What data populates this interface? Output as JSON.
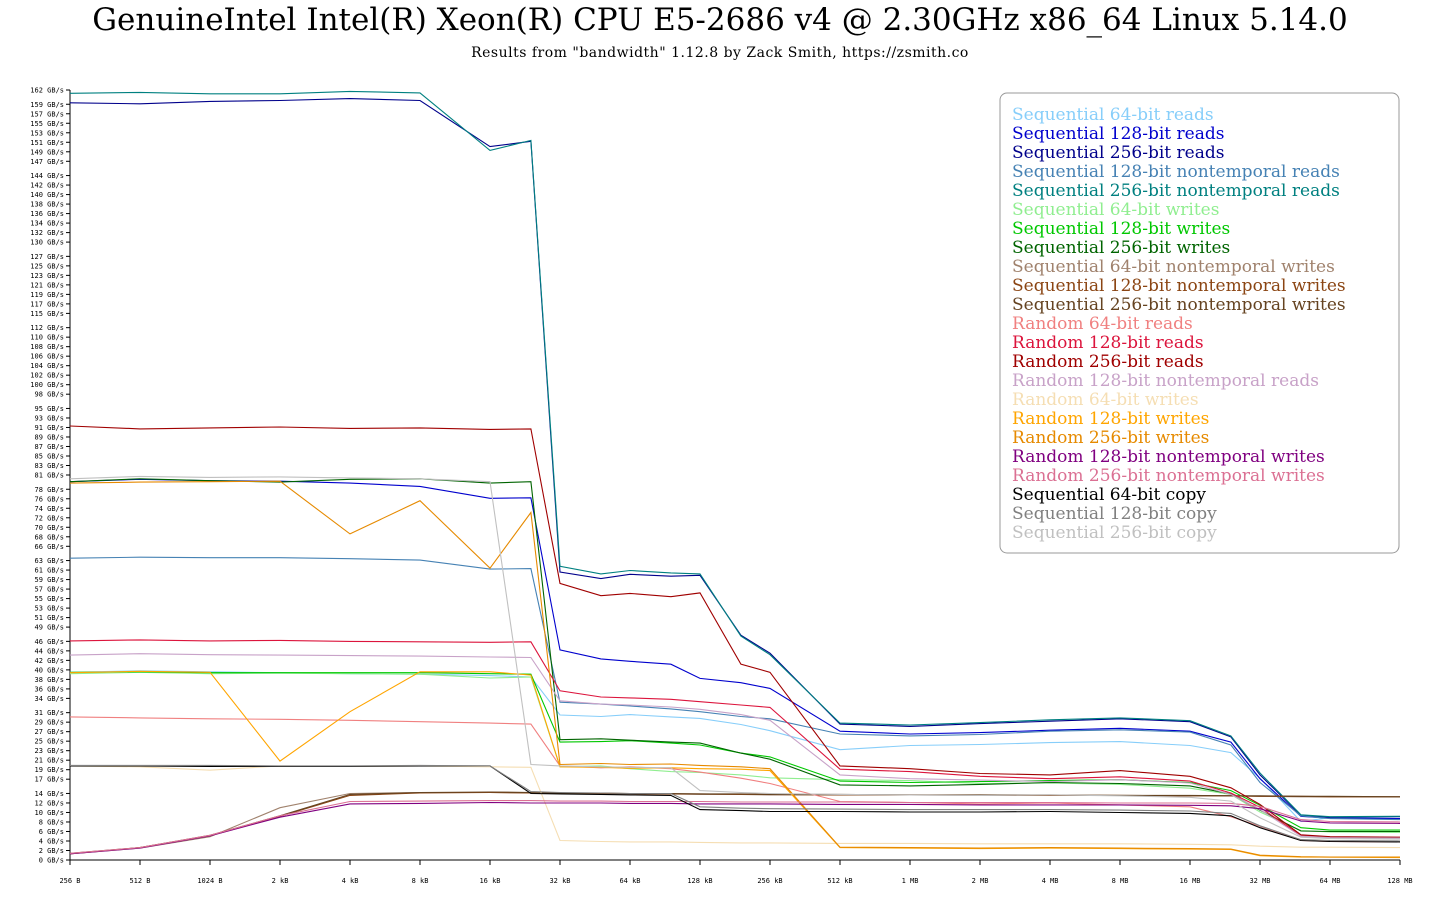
{
  "header": {
    "title": "GenuineIntel Intel(R) Xeon(R) CPU E5-2686 v4 @ 2.30GHz x86_64 Linux 5.14.0",
    "subtitle": "Results from \"bandwidth\" 1.12.8 by Zack Smith, https://zsmith.co"
  },
  "chart_data": {
    "type": "line",
    "title": "GenuineIntel Intel(R) Xeon(R) CPU E5-2686 v4 @ 2.30GHz x86_64 Linux 5.14.0",
    "subtitle": "Results from \"bandwidth\" 1.12.8 by Zack Smith, https://zsmith.co",
    "xlabel": "",
    "ylabel": "",
    "x_scale": "log2",
    "x_ticks": [
      "256 B",
      "512 B",
      "1024 B",
      "2 kB",
      "4 kB",
      "8 kB",
      "16 kB",
      "32 kB",
      "64 kB",
      "128 kB",
      "256 kB",
      "512 kB",
      "1 MB",
      "2 MB",
      "4 MB",
      "8 MB",
      "16 MB",
      "32 MB",
      "64 MB",
      "128 MB"
    ],
    "y_ticks": [
      "0 GB/s",
      "2 GB/s",
      "4 GB/s",
      "6 GB/s",
      "8 GB/s",
      "10 GB/s",
      "12 GB/s",
      "14 GB/s",
      "17 GB/s",
      "19 GB/s",
      "21 GB/s",
      "23 GB/s",
      "25 GB/s",
      "27 GB/s",
      "29 GB/s",
      "31 GB/s",
      "34 GB/s",
      "36 GB/s",
      "38 GB/s",
      "40 GB/s",
      "42 GB/s",
      "44 GB/s",
      "46 GB/s",
      "49 GB/s",
      "51 GB/s",
      "53 GB/s",
      "55 GB/s",
      "57 GB/s",
      "59 GB/s",
      "61 GB/s",
      "63 GB/s",
      "66 GB/s",
      "68 GB/s",
      "70 GB/s",
      "72 GB/s",
      "74 GB/s",
      "76 GB/s",
      "78 GB/s",
      "81 GB/s",
      "83 GB/s",
      "85 GB/s",
      "87 GB/s",
      "89 GB/s",
      "91 GB/s",
      "93 GB/s",
      "95 GB/s",
      "98 GB/s",
      "100 GB/s",
      "102 GB/s",
      "104 GB/s",
      "106 GB/s",
      "108 GB/s",
      "110 GB/s",
      "112 GB/s",
      "115 GB/s",
      "117 GB/s",
      "119 GB/s",
      "121 GB/s",
      "123 GB/s",
      "125 GB/s",
      "127 GB/s",
      "130 GB/s",
      "132 GB/s",
      "134 GB/s",
      "136 GB/s",
      "138 GB/s",
      "140 GB/s",
      "142 GB/s",
      "144 GB/s",
      "147 GB/s",
      "149 GB/s",
      "151 GB/s",
      "153 GB/s",
      "155 GB/s",
      "157 GB/s",
      "159 GB/s",
      "162 GB/s"
    ],
    "ylim": [
      0,
      162
    ],
    "grid": false,
    "legend_position": "top-right",
    "x_sizes": [
      "256 B",
      "512 B",
      "1024 B",
      "2 kB",
      "4 kB",
      "8 kB",
      "16 kB",
      "24 kB",
      "32 kB",
      "48 kB",
      "64 kB",
      "96 kB",
      "128 kB",
      "192 kB",
      "256 kB",
      "512 kB",
      "1 MB",
      "2 MB",
      "4 MB",
      "8 MB",
      "16 MB",
      "24 MB",
      "32 MB",
      "48 MB",
      "64 MB",
      "128 MB"
    ],
    "series": [
      {
        "name": "Sequential 64-bit reads",
        "color": "#87cefa",
        "values": [
          39.5,
          39.8,
          39.6,
          39.4,
          39.2,
          39.1,
          38.8,
          38.5,
          30.5,
          30.2,
          30.6,
          30.1,
          29.8,
          28.5,
          27.2,
          23.2,
          24.1,
          24.3,
          24.7,
          24.9,
          24.1,
          22.6,
          17.2,
          8.1,
          8.9,
          8.7
        ]
      },
      {
        "name": "Sequential 128-bit reads",
        "color": "#0000cd",
        "values": [
          79.6,
          80.1,
          79.8,
          79.7,
          79.3,
          78.6,
          76.1,
          76.2,
          44.2,
          42.3,
          41.8,
          41.2,
          38.2,
          37.3,
          36.1,
          27.1,
          26.5,
          26.8,
          27.3,
          27.7,
          27.1,
          24.8,
          17.1,
          9.2,
          8.8,
          8.7
        ]
      },
      {
        "name": "Sequential 256-bit reads",
        "color": "#00008b",
        "values": [
          159.3,
          159.1,
          159.6,
          159.8,
          160.2,
          159.8,
          150.1,
          151.2,
          60.6,
          59.2,
          60.1,
          59.7,
          59.9,
          47.3,
          43.5,
          28.6,
          28.1,
          28.7,
          29.2,
          29.7,
          29.1,
          25.9,
          17.9,
          9.4,
          9.0,
          9.1
        ]
      },
      {
        "name": "Sequential 128-bit nontemporal reads",
        "color": "#4682b4",
        "values": [
          63.5,
          63.7,
          63.6,
          63.6,
          63.4,
          63.1,
          61.2,
          61.3,
          33.2,
          32.8,
          32.4,
          31.8,
          31.2,
          30.2,
          29.7,
          26.5,
          26.1,
          26.4,
          27.1,
          27.4,
          26.9,
          24.2,
          16.3,
          9.3,
          8.7,
          8.5
        ]
      },
      {
        "name": "Sequential 256-bit nontemporal reads",
        "color": "#008080",
        "values": [
          161.3,
          161.5,
          161.2,
          161.2,
          161.7,
          161.4,
          149.3,
          151.4,
          61.8,
          60.2,
          60.9,
          60.4,
          60.2,
          47.1,
          43.2,
          28.8,
          28.4,
          28.9,
          29.5,
          29.9,
          29.3,
          26.1,
          18.3,
          9.5,
          9.1,
          9.2
        ]
      },
      {
        "name": "Sequential 64-bit writes",
        "color": "#90ee90",
        "values": [
          39.2,
          39.5,
          39.2,
          39.3,
          39.2,
          39.1,
          38.3,
          38.5,
          19.6,
          19.8,
          19.2,
          18.6,
          18.4,
          17.9,
          17.3,
          16.9,
          16.7,
          16.1,
          16.2,
          15.9,
          15.1,
          13.8,
          10.1,
          6.2,
          5.9,
          5.8
        ]
      },
      {
        "name": "Sequential 128-bit writes",
        "color": "#00c800",
        "values": [
          39.5,
          39.6,
          39.4,
          39.4,
          39.4,
          39.4,
          39.2,
          39.1,
          24.8,
          24.9,
          25.1,
          24.6,
          24.2,
          22.5,
          21.7,
          16.6,
          16.3,
          16.5,
          16.7,
          16.9,
          16.3,
          14.6,
          11.5,
          6.8,
          6.3,
          6.3
        ]
      },
      {
        "name": "Sequential 256-bit writes",
        "color": "#006400",
        "values": [
          79.6,
          80.2,
          79.8,
          79.5,
          80.1,
          80.2,
          79.3,
          79.6,
          25.3,
          25.5,
          25.2,
          24.8,
          24.6,
          22.5,
          21.2,
          15.8,
          15.6,
          15.9,
          16.3,
          16.1,
          15.6,
          13.9,
          10.5,
          6.1,
          6.0,
          6.0
        ]
      },
      {
        "name": "Sequential 64-bit nontemporal writes",
        "color": "#a0826d",
        "values": [
          1.3,
          2.5,
          4.9,
          11.0,
          14.0,
          14.2,
          14.2,
          14.1,
          14.0,
          13.9,
          13.9,
          13.9,
          13.8,
          13.8,
          13.7,
          13.7,
          13.7,
          13.6,
          13.6,
          13.6,
          13.5,
          13.5,
          13.4,
          13.3,
          13.3,
          13.3
        ]
      },
      {
        "name": "Sequential 128-bit nontemporal writes",
        "color": "#8b4513",
        "values": [
          1.3,
          2.6,
          5.1,
          9.2,
          13.6,
          14.1,
          14.2,
          14.1,
          14.0,
          14.0,
          14.0,
          13.9,
          13.9,
          13.8,
          13.8,
          13.7,
          13.7,
          13.7,
          13.6,
          13.6,
          13.5,
          13.5,
          13.4,
          13.4,
          13.3,
          13.3
        ]
      },
      {
        "name": "Sequential 256-bit nontemporal writes",
        "color": "#654321",
        "values": [
          1.4,
          2.6,
          5.2,
          9.3,
          13.8,
          14.2,
          14.3,
          14.2,
          14.1,
          14.1,
          14.0,
          14.0,
          13.9,
          13.9,
          13.8,
          13.8,
          13.7,
          13.7,
          13.7,
          13.6,
          13.6,
          13.5,
          13.5,
          13.4,
          13.4,
          13.3
        ]
      },
      {
        "name": "Random 64-bit reads",
        "color": "#f08080",
        "values": [
          30.1,
          29.9,
          29.7,
          29.6,
          29.4,
          29.1,
          28.8,
          28.6,
          19.8,
          19.4,
          19.6,
          19.2,
          18.5,
          17.2,
          16.1,
          12.3,
          12.1,
          11.8,
          12.0,
          11.6,
          11.2,
          9.1,
          7.1,
          4.1,
          3.9,
          3.8
        ]
      },
      {
        "name": "Random 128-bit reads",
        "color": "#dc143c",
        "values": [
          46.1,
          46.3,
          46.1,
          46.2,
          46.0,
          45.9,
          45.8,
          45.9,
          35.6,
          34.3,
          34.1,
          33.8,
          33.3,
          32.6,
          32.1,
          19.1,
          18.6,
          17.6,
          17.1,
          17.5,
          16.6,
          14.1,
          11.1,
          5.1,
          4.8,
          4.6
        ]
      },
      {
        "name": "Random 256-bit reads",
        "color": "#a00000",
        "values": [
          91.3,
          90.7,
          90.9,
          91.1,
          90.8,
          90.9,
          90.6,
          90.7,
          58.2,
          55.6,
          56.1,
          55.4,
          56.2,
          41.2,
          39.5,
          19.8,
          19.2,
          18.2,
          17.9,
          18.8,
          17.6,
          15.2,
          11.7,
          5.3,
          4.9,
          4.8
        ]
      },
      {
        "name": "Random 128-bit nontemporal reads",
        "color": "#c8a2c8",
        "values": [
          43.1,
          43.4,
          43.2,
          43.1,
          43.0,
          42.9,
          42.7,
          42.6,
          33.5,
          32.8,
          32.6,
          32.2,
          31.7,
          30.6,
          29.4,
          17.9,
          17.1,
          16.8,
          16.5,
          16.9,
          16.2,
          13.8,
          10.6,
          5.0,
          4.7,
          4.6
        ]
      },
      {
        "name": "Random 64-bit writes",
        "color": "#f5deb3",
        "values": [
          19.8,
          19.6,
          18.9,
          19.8,
          19.7,
          19.8,
          19.6,
          19.5,
          4.1,
          3.9,
          3.8,
          3.8,
          3.7,
          3.6,
          3.6,
          3.5,
          3.5,
          3.4,
          3.4,
          3.4,
          3.3,
          3.2,
          2.9,
          2.7,
          2.7,
          2.6
        ]
      },
      {
        "name": "Random 128-bit writes",
        "color": "#ffa500",
        "values": [
          39.4,
          39.7,
          39.5,
          20.8,
          31.2,
          39.6,
          39.6,
          38.9,
          19.6,
          19.5,
          19.3,
          19.4,
          19.2,
          19.1,
          18.8,
          2.6,
          2.5,
          2.4,
          2.5,
          2.4,
          2.3,
          2.2,
          0.9,
          0.6,
          0.6,
          0.5
        ]
      },
      {
        "name": "Random 256-bit writes",
        "color": "#e68a00",
        "values": [
          79.3,
          79.5,
          79.6,
          79.7,
          68.6,
          75.6,
          61.4,
          73.1,
          20.1,
          20.3,
          20.1,
          20.2,
          19.9,
          19.6,
          19.2,
          2.7,
          2.6,
          2.5,
          2.6,
          2.5,
          2.4,
          2.3,
          1.0,
          0.7,
          0.6,
          0.6
        ]
      },
      {
        "name": "Random 128-bit nontemporal writes",
        "color": "#800080",
        "values": [
          1.3,
          2.5,
          5.1,
          9.0,
          11.8,
          11.9,
          12.1,
          12.0,
          12.0,
          12.0,
          11.9,
          11.9,
          11.8,
          11.8,
          11.8,
          11.7,
          11.7,
          11.6,
          11.6,
          11.6,
          11.5,
          11.4,
          10.8,
          8.2,
          7.8,
          7.7
        ]
      },
      {
        "name": "Random 256-bit nontemporal writes",
        "color": "#db7093",
        "values": [
          1.4,
          2.6,
          5.2,
          9.3,
          12.3,
          12.4,
          12.5,
          12.5,
          12.4,
          12.4,
          12.3,
          12.3,
          12.3,
          12.2,
          12.2,
          12.2,
          12.1,
          12.1,
          12.1,
          12.0,
          12.0,
          11.9,
          11.3,
          8.5,
          8.1,
          8.0
        ]
      },
      {
        "name": "Sequential 64-bit copy",
        "color": "#000000",
        "values": [
          19.8,
          19.8,
          19.7,
          19.7,
          19.7,
          19.8,
          19.8,
          14.0,
          13.9,
          13.8,
          13.7,
          13.6,
          10.6,
          10.4,
          10.2,
          10.2,
          10.1,
          10.1,
          10.2,
          10.0,
          9.8,
          9.3,
          6.8,
          4.1,
          3.9,
          3.8
        ]
      },
      {
        "name": "Sequential 128-bit copy",
        "color": "#808080",
        "values": [
          19.9,
          19.9,
          19.9,
          19.8,
          19.8,
          19.9,
          19.8,
          14.4,
          14.2,
          14.1,
          14.0,
          14.0,
          11.2,
          10.9,
          10.8,
          10.7,
          10.6,
          10.6,
          10.6,
          10.5,
          10.3,
          9.8,
          7.2,
          4.3,
          4.1,
          4.0
        ]
      },
      {
        "name": "Sequential 256-bit copy",
        "color": "#c0c0c0",
        "values": [
          80.2,
          80.7,
          80.5,
          80.6,
          80.4,
          80.2,
          79.6,
          20.1,
          19.8,
          19.6,
          19.5,
          19.4,
          14.6,
          14.2,
          14.0,
          13.8,
          13.7,
          13.6,
          13.7,
          13.5,
          13.2,
          12.4,
          8.9,
          4.8,
          4.5,
          4.4
        ]
      }
    ]
  }
}
